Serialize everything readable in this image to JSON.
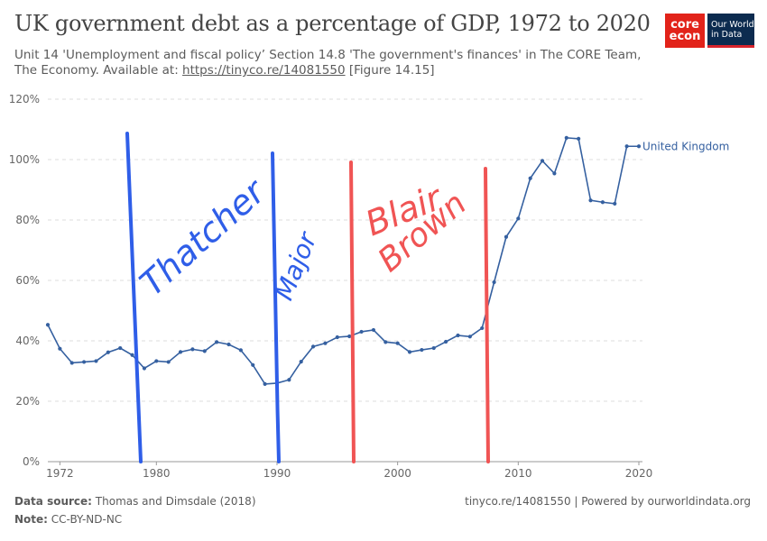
{
  "header": {
    "title": "UK government debt as a percentage of GDP, 1972 to 2020",
    "subtitle_text": "Unit 14 'Unemployment and fiscal policy’ Section 14.8 'The government's finances' in The CORE Team, The Economy. Available at: ",
    "subtitle_link": "https://tinyco.re/14081550",
    "subtitle_after": " [Figure 14.15]"
  },
  "logos": {
    "core_top": "core",
    "core_bottom": "econ",
    "owid_line1": "Our World",
    "owid_line2": "in Data"
  },
  "footer": {
    "source_label": "Data source:",
    "source_value": "Thomas and Dimsdale (2018)",
    "note_label": "Note:",
    "note_value": "CC-BY-ND-NC",
    "right_text": "tinyco.re/14081550 | Powered by ourworldindata.org"
  },
  "colors": {
    "series": "#3560a0",
    "grid": "#dddddd",
    "annotation_blue": "#2f5ee8",
    "annotation_red": "#f05454"
  },
  "chart_data": {
    "type": "line",
    "title": "UK government debt as a percentage of GDP, 1972 to 2020",
    "xlim": [
      1971,
      2020.3
    ],
    "ylim": [
      0,
      120
    ],
    "x_ticks": [
      1972,
      1980,
      1990,
      2000,
      2010,
      2020
    ],
    "y_ticks": [
      0,
      20,
      40,
      60,
      80,
      100,
      120
    ],
    "y_tick_labels": [
      "0%",
      "20%",
      "40%",
      "60%",
      "80%",
      "100%",
      "120%"
    ],
    "grid": "horizontal dashed",
    "series": [
      {
        "name": "United Kingdom",
        "x": [
          1971,
          1972,
          1973,
          1974,
          1975,
          1976,
          1977,
          1978,
          1979,
          1980,
          1981,
          1982,
          1983,
          1984,
          1985,
          1986,
          1987,
          1988,
          1989,
          1990,
          1991,
          1992,
          1993,
          1994,
          1995,
          1996,
          1997,
          1998,
          1999,
          2000,
          2001,
          2002,
          2003,
          2004,
          2005,
          2006,
          2007,
          2008,
          2009,
          2010,
          2011,
          2012,
          2013,
          2014,
          2015,
          2016,
          2017,
          2018,
          2019,
          2020
        ],
        "values": [
          45.3,
          37.4,
          32.7,
          33.0,
          33.3,
          36.2,
          37.6,
          35.3,
          30.9,
          33.3,
          33.0,
          36.3,
          37.2,
          36.6,
          39.6,
          38.8,
          36.9,
          32.0,
          25.7,
          26.0,
          27.1,
          33.1,
          38.1,
          39.2,
          41.2,
          41.5,
          43.0,
          43.6,
          39.6,
          39.2,
          36.3,
          37.0,
          37.6,
          39.7,
          41.8,
          41.4,
          44.2,
          59.4,
          74.4,
          80.5,
          93.8,
          99.6,
          95.4,
          107.2,
          106.9,
          86.5,
          85.9,
          85.4,
          104.4,
          104.4
        ]
      }
    ],
    "annotations": [
      {
        "text": "Thatcher",
        "color": "blue"
      },
      {
        "text": "Major",
        "color": "blue"
      },
      {
        "text": "Blair",
        "color": "red"
      },
      {
        "text": "Brown",
        "color": "red"
      }
    ]
  }
}
